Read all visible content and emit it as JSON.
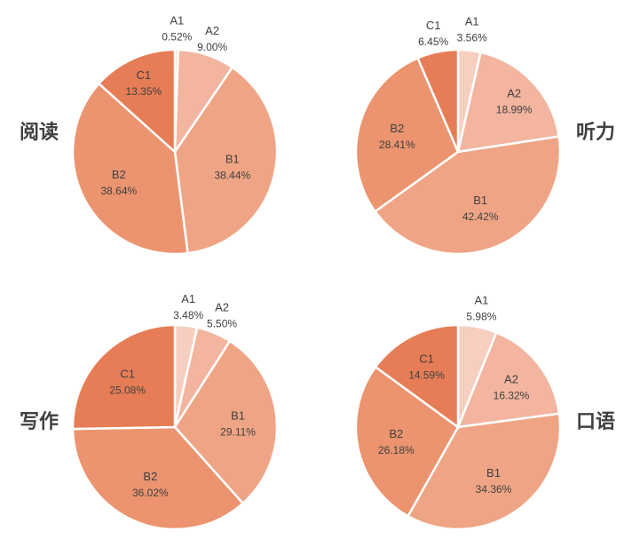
{
  "colors": {
    "A1": "#f6cfc0",
    "A2": "#f3b59f",
    "B1": "#efa585",
    "B2": "#eb946f",
    "C1": "#e77d56",
    "stroke": "#ffffff",
    "text": "#404040"
  },
  "chart_data": [
    {
      "type": "pie",
      "title": "阅读",
      "slices": [
        {
          "label": "A1",
          "value": 0.52,
          "display": "0.52%"
        },
        {
          "label": "A2",
          "value": 9.0,
          "display": "9.00%"
        },
        {
          "label": "B1",
          "value": 38.44,
          "display": "38.44%"
        },
        {
          "label": "B2",
          "value": 38.64,
          "display": "38.64%"
        },
        {
          "label": "C1",
          "value": 13.35,
          "display": "13.35%"
        }
      ]
    },
    {
      "type": "pie",
      "title": "听力",
      "slices": [
        {
          "label": "A1",
          "value": 3.56,
          "display": "3.56%"
        },
        {
          "label": "A2",
          "value": 18.99,
          "display": "18.99%"
        },
        {
          "label": "B1",
          "value": 42.42,
          "display": "42.42%"
        },
        {
          "label": "B2",
          "value": 28.41,
          "display": "28.41%"
        },
        {
          "label": "C1",
          "value": 6.45,
          "display": "6.45%"
        }
      ]
    },
    {
      "type": "pie",
      "title": "写作",
      "slices": [
        {
          "label": "A1",
          "value": 3.48,
          "display": "3.48%"
        },
        {
          "label": "A2",
          "value": 5.5,
          "display": "5.50%"
        },
        {
          "label": "B1",
          "value": 29.11,
          "display": "29.11%"
        },
        {
          "label": "B2",
          "value": 36.02,
          "display": "36.02%"
        },
        {
          "label": "C1",
          "value": 25.08,
          "display": "25.08%"
        }
      ]
    },
    {
      "type": "pie",
      "title": "口语",
      "slices": [
        {
          "label": "A1",
          "value": 5.98,
          "display": "5.98%"
        },
        {
          "label": "A2",
          "value": 16.32,
          "display": "16.32%"
        },
        {
          "label": "B1",
          "value": 34.36,
          "display": "34.36%"
        },
        {
          "label": "B2",
          "value": 26.18,
          "display": "26.18%"
        },
        {
          "label": "C1",
          "value": 14.59,
          "display": "14.59%"
        }
      ]
    }
  ]
}
